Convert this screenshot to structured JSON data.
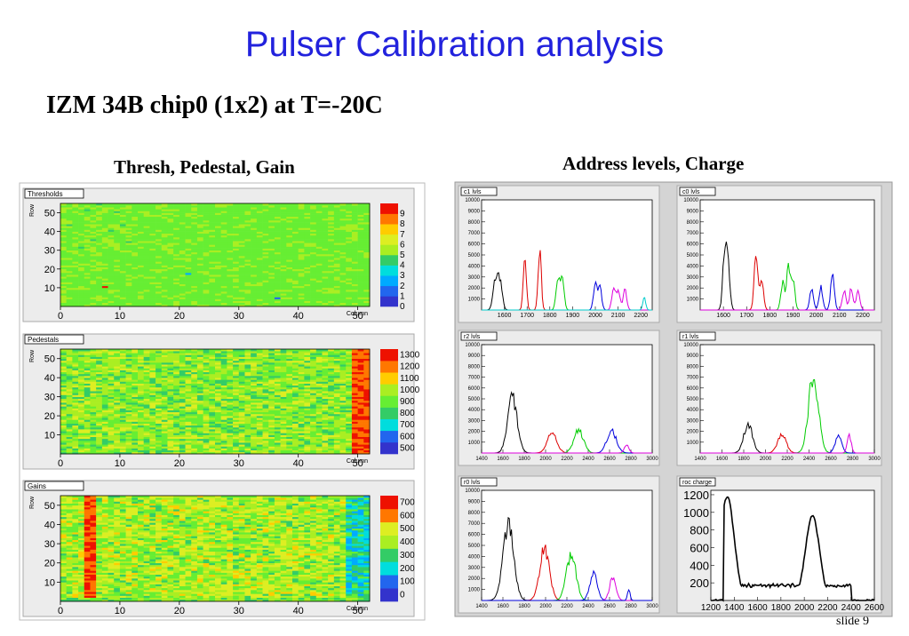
{
  "slide": {
    "title": "Pulser Calibration analysis",
    "subtitle": "IZM 34B chip0 (1x2)  at T=-20C",
    "left_heading": "Thresh, Pedestal, Gain",
    "right_heading": "Address levels, Charge",
    "footer": "slide 9"
  },
  "colors": {
    "title": "#2222dd",
    "panel_bg": "#e8e8e8",
    "frame": "#c8c8c8"
  },
  "chart_data": [
    {
      "type": "heatmap",
      "title": "Thresholds",
      "xlabel": "Column",
      "ylabel": "Row",
      "xlim": [
        0,
        52
      ],
      "ylim": [
        0,
        55
      ],
      "x_ticks": [
        "0",
        "10",
        "20",
        "30",
        "40",
        "50"
      ],
      "y_ticks": [
        "10",
        "20",
        "30",
        "40",
        "50"
      ],
      "palette_labels": [
        "0",
        "1",
        "2",
        "3",
        "4",
        "5",
        "6",
        "7",
        "8",
        "9"
      ],
      "dominant_value": 5,
      "outliers": [
        {
          "col": 7,
          "row": 10,
          "value": 9
        },
        {
          "col": 21,
          "row": 17,
          "value": 2
        },
        {
          "col": 36,
          "row": 4,
          "value": 1
        }
      ]
    },
    {
      "type": "heatmap",
      "title": "Pedestals",
      "xlabel": "Column",
      "ylabel": "Row",
      "xlim": [
        0,
        52
      ],
      "ylim": [
        0,
        55
      ],
      "x_ticks": [
        "0",
        "10",
        "20",
        "30",
        "40",
        "50"
      ],
      "y_ticks": [
        "10",
        "20",
        "30",
        "40",
        "50"
      ],
      "palette_labels": [
        "500",
        "600",
        "700",
        "800",
        "900",
        "1000",
        "1100",
        "1200",
        "1300"
      ],
      "typical_range": [
        900,
        1100
      ],
      "high_columns": [
        49,
        50,
        51
      ]
    },
    {
      "type": "heatmap",
      "title": "Gains",
      "xlabel": "Column",
      "ylabel": "Row",
      "xlim": [
        0,
        52
      ],
      "ylim": [
        0,
        55
      ],
      "x_ticks": [
        "0",
        "10",
        "20",
        "30",
        "40",
        "50"
      ],
      "y_ticks": [
        "10",
        "20",
        "30",
        "40",
        "50"
      ],
      "palette_labels": [
        "0",
        "100",
        "200",
        "300",
        "400",
        "500",
        "600",
        "700"
      ],
      "typical_range": [
        450,
        600
      ],
      "high_columns": [
        4,
        5
      ],
      "low_columns": [
        48,
        49,
        50,
        51
      ]
    },
    {
      "type": "line",
      "title": "c1 lvls",
      "xlim": [
        1500,
        2250
      ],
      "ylim": [
        0,
        10000
      ],
      "x_ticks": [
        "1600",
        "1700",
        "1800",
        "1900",
        "2000",
        "2100",
        "2200"
      ],
      "y_ticks": [
        "1000",
        "2000",
        "3000",
        "4000",
        "5000",
        "6000",
        "7000",
        "8000",
        "9000",
        "10000"
      ],
      "peaks": [
        {
          "color": "#000000",
          "centers": [
            1560,
            1580
          ],
          "heights": [
            2500,
            2700
          ],
          "width": 10
        },
        {
          "color": "#dd0000",
          "centers": [
            1690,
            1755
          ],
          "heights": [
            4200,
            5700
          ],
          "width": 7
        },
        {
          "color": "#00cc00",
          "centers": [
            1835,
            1855
          ],
          "heights": [
            3100,
            2700
          ],
          "width": 8
        },
        {
          "color": "#0000dd",
          "centers": [
            2000,
            2020
          ],
          "heights": [
            2500,
            2000
          ],
          "width": 8
        },
        {
          "color": "#dd00dd",
          "centers": [
            2080,
            2100,
            2130
          ],
          "heights": [
            2000,
            1800,
            1900
          ],
          "width": 8
        },
        {
          "color": "#00cccc",
          "centers": [
            2215
          ],
          "heights": [
            1300
          ],
          "width": 6
        }
      ]
    },
    {
      "type": "line",
      "title": "c0 lvls",
      "xlim": [
        1500,
        2250
      ],
      "ylim": [
        0,
        10000
      ],
      "x_ticks": [
        "1600",
        "1700",
        "1800",
        "1900",
        "2000",
        "2100",
        "2200"
      ],
      "y_ticks": [
        "1000",
        "2000",
        "3000",
        "4000",
        "5000",
        "6000",
        "7000",
        "8000",
        "9000",
        "10000"
      ],
      "peaks": [
        {
          "color": "#000000",
          "centers": [
            1605,
            1620
          ],
          "heights": [
            5000,
            3900
          ],
          "width": 8
        },
        {
          "color": "#dd0000",
          "centers": [
            1740,
            1765
          ],
          "heights": [
            4600,
            2700
          ],
          "width": 8
        },
        {
          "color": "#00cc00",
          "centers": [
            1855,
            1880,
            1900
          ],
          "heights": [
            2500,
            3700,
            2600
          ],
          "width": 8
        },
        {
          "color": "#0000dd",
          "centers": [
            1980,
            2020,
            2070
          ],
          "heights": [
            1800,
            2000,
            3200
          ],
          "width": 8
        },
        {
          "color": "#dd00dd",
          "centers": [
            2120,
            2150,
            2180
          ],
          "heights": [
            1700,
            1800,
            1600
          ],
          "width": 8
        }
      ]
    },
    {
      "type": "line",
      "title": "r2 lvls",
      "xlim": [
        1400,
        3000
      ],
      "ylim": [
        0,
        10000
      ],
      "x_ticks": [
        "1400",
        "1600",
        "1800",
        "2000",
        "2200",
        "2400",
        "2600",
        "2800",
        "3000"
      ],
      "y_ticks": [
        "1000",
        "2000",
        "3000",
        "4000",
        "5000",
        "6000",
        "7000",
        "8000",
        "9000",
        "10000"
      ],
      "peaks": [
        {
          "color": "#000000",
          "centers": [
            1690
          ],
          "heights": [
            5100
          ],
          "width": 45
        },
        {
          "color": "#dd0000",
          "centers": [
            2060
          ],
          "heights": [
            1800
          ],
          "width": 45
        },
        {
          "color": "#00cc00",
          "centers": [
            2310
          ],
          "heights": [
            2100
          ],
          "width": 45
        },
        {
          "color": "#0000dd",
          "centers": [
            2620
          ],
          "heights": [
            2000
          ],
          "width": 45
        },
        {
          "color": "#dd00dd",
          "centers": [
            2760
          ],
          "heights": [
            700
          ],
          "width": 22
        }
      ]
    },
    {
      "type": "line",
      "title": "r1 lvls",
      "xlim": [
        1400,
        3000
      ],
      "ylim": [
        0,
        10000
      ],
      "x_ticks": [
        "1400",
        "1600",
        "1800",
        "2000",
        "2200",
        "2400",
        "2600",
        "2800",
        "3000"
      ],
      "y_ticks": [
        "1000",
        "2000",
        "3000",
        "4000",
        "5000",
        "6000",
        "7000",
        "8000",
        "9000",
        "10000"
      ],
      "peaks": [
        {
          "color": "#000000",
          "centers": [
            1840
          ],
          "heights": [
            2700
          ],
          "width": 40
        },
        {
          "color": "#dd0000",
          "centers": [
            2150
          ],
          "heights": [
            1700
          ],
          "width": 40
        },
        {
          "color": "#00cc00",
          "centers": [
            2440
          ],
          "heights": [
            7000
          ],
          "width": 45
        },
        {
          "color": "#0000dd",
          "centers": [
            2670
          ],
          "heights": [
            1500
          ],
          "width": 30
        },
        {
          "color": "#dd00dd",
          "centers": [
            2770
          ],
          "heights": [
            1600
          ],
          "width": 18
        }
      ]
    },
    {
      "type": "line",
      "title": "r0 lvls",
      "xlim": [
        1400,
        3000
      ],
      "ylim": [
        0,
        10000
      ],
      "x_ticks": [
        "1400",
        "1600",
        "1800",
        "2000",
        "2200",
        "2400",
        "2600",
        "2800",
        "3000"
      ],
      "y_ticks": [
        "1000",
        "2000",
        "3000",
        "4000",
        "5000",
        "6000",
        "7000",
        "8000",
        "9000",
        "10000"
      ],
      "peaks": [
        {
          "color": "#000000",
          "centers": [
            1650
          ],
          "heights": [
            6900
          ],
          "width": 50
        },
        {
          "color": "#dd0000",
          "centers": [
            1990
          ],
          "heights": [
            4800
          ],
          "width": 45
        },
        {
          "color": "#00cc00",
          "centers": [
            2240
          ],
          "heights": [
            4100
          ],
          "width": 45
        },
        {
          "color": "#0000dd",
          "centers": [
            2450
          ],
          "heights": [
            2400
          ],
          "width": 35
        },
        {
          "color": "#dd00dd",
          "centers": [
            2630
          ],
          "heights": [
            2000
          ],
          "width": 30
        },
        {
          "color": "#0000dd",
          "centers": [
            2780
          ],
          "heights": [
            1000
          ],
          "width": 12
        }
      ]
    },
    {
      "type": "line",
      "title": "roc charge",
      "xlim": [
        1200,
        2600
      ],
      "ylim": [
        0,
        1250
      ],
      "x_ticks": [
        "1200",
        "1400",
        "1600",
        "1800",
        "2000",
        "2200",
        "2400",
        "2600"
      ],
      "y_ticks": [
        "200",
        "400",
        "600",
        "800",
        "1000",
        "1200"
      ],
      "peaks": [
        {
          "color": "#000000",
          "centers": [
            1340,
            2070
          ],
          "heights": [
            1180,
            960
          ],
          "width": 60,
          "baseline": 170
        }
      ]
    }
  ]
}
